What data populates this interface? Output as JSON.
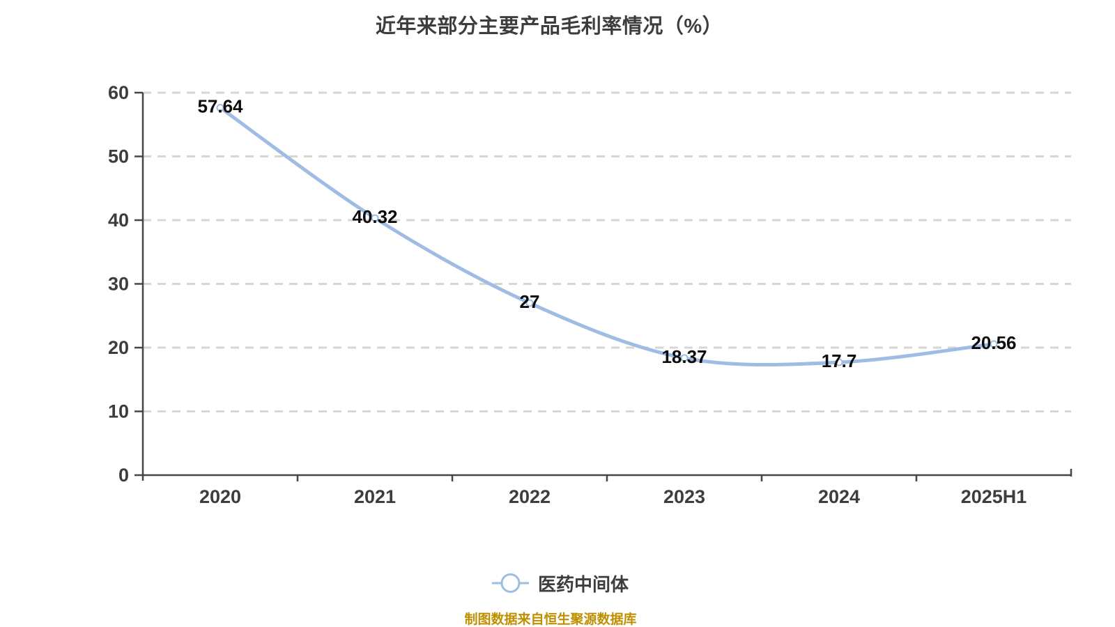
{
  "title": "近年来部分主要产品毛利率情况（%）",
  "legend": {
    "label": "医药中间体"
  },
  "source_note": "制图数据来自恒生聚源数据库",
  "colors": {
    "line": "#9fbce3",
    "marker_fill": "#ffffff",
    "grid": "#d8d6d2",
    "axis": "#454545",
    "axis_text": "#3d3d3d",
    "data_label": "#0d0d0d",
    "source": "#bf8f00"
  },
  "chart_data": {
    "type": "line",
    "title": "近年来部分主要产品毛利率情况（%）",
    "categories": [
      "2020",
      "2021",
      "2022",
      "2023",
      "2024",
      "2025H1"
    ],
    "series": [
      {
        "name": "医药中间体",
        "values": [
          57.64,
          40.32,
          27,
          18.37,
          17.7,
          20.56
        ]
      }
    ],
    "data_labels": [
      "57.64",
      "40.32",
      "27",
      "18.37",
      "17.7",
      "20.56"
    ],
    "xlabel": "",
    "ylabel": "",
    "ylim": [
      0,
      60
    ],
    "yticks": [
      0,
      10,
      20,
      30,
      40,
      50,
      60
    ],
    "grid": "horizontal-dashed",
    "smooth": true,
    "legend_position": "bottom"
  }
}
